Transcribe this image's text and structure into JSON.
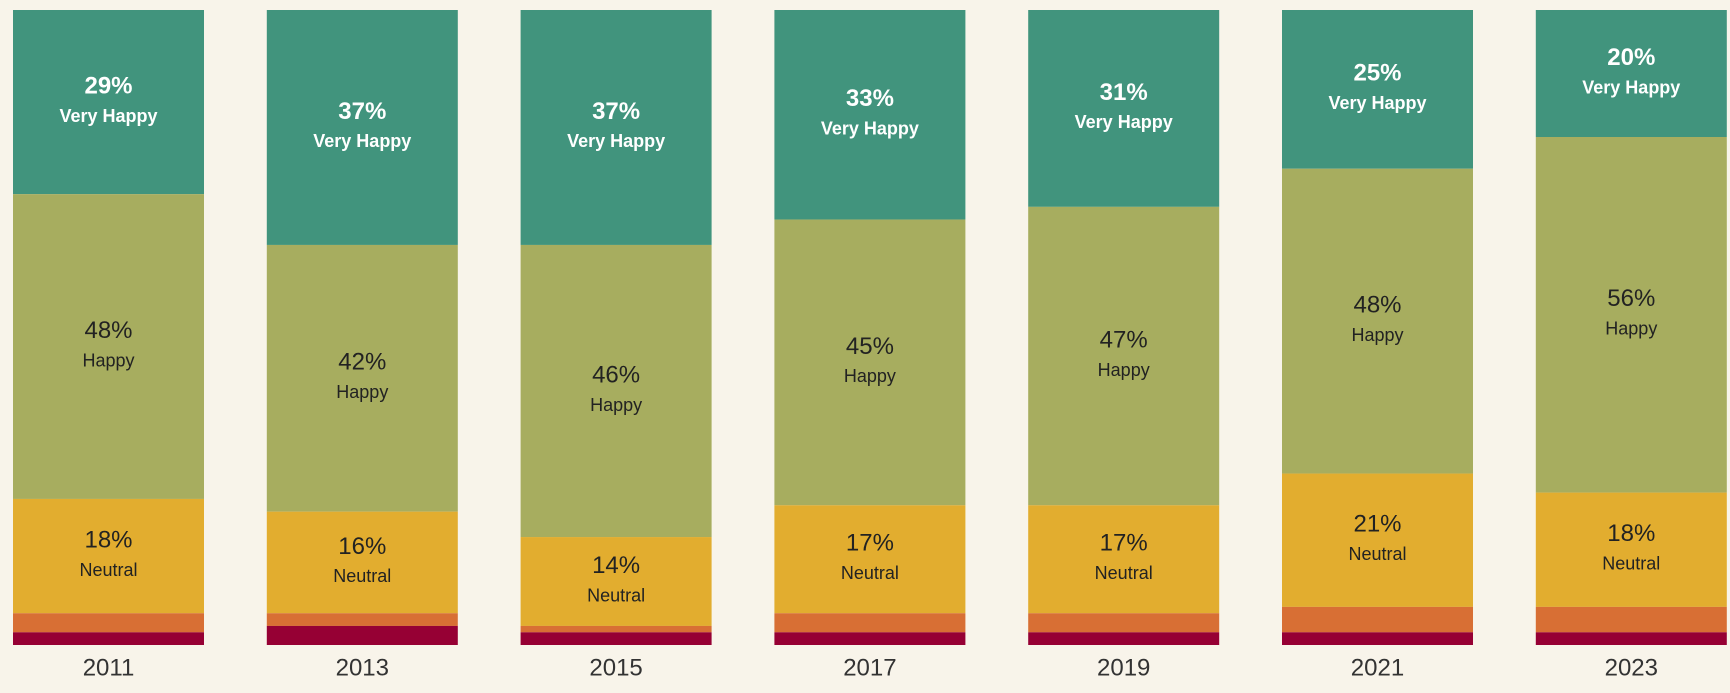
{
  "chart_data": {
    "type": "stacked_bar",
    "categories": [
      "2011",
      "2013",
      "2015",
      "2017",
      "2019",
      "2021",
      "2023"
    ],
    "ylim": [
      0,
      100
    ],
    "series": [
      {
        "name": "Very Happy",
        "color": "#41947d",
        "values": [
          29,
          37,
          37,
          33,
          31,
          25,
          20
        ],
        "value_labels": [
          "29%",
          "37%",
          "37%",
          "33%",
          "31%",
          "25%",
          "20%"
        ]
      },
      {
        "name": "Happy",
        "color": "#a7ad5f",
        "values": [
          48,
          42,
          46,
          45,
          47,
          48,
          56
        ],
        "value_labels": [
          "48%",
          "42%",
          "46%",
          "45%",
          "47%",
          "48%",
          "56%"
        ]
      },
      {
        "name": "Neutral",
        "color": "#e2ad2f",
        "values": [
          18,
          16,
          14,
          17,
          17,
          21,
          18
        ],
        "value_labels": [
          "18%",
          "16%",
          "14%",
          "17%",
          "17%",
          "21%",
          "18%"
        ]
      },
      {
        "color": "#d86f34",
        "values": [
          3,
          2,
          1,
          3,
          3,
          4,
          4
        ]
      },
      {
        "color": "#960034",
        "values": [
          2,
          3,
          2,
          2,
          2,
          2,
          2
        ]
      }
    ]
  }
}
